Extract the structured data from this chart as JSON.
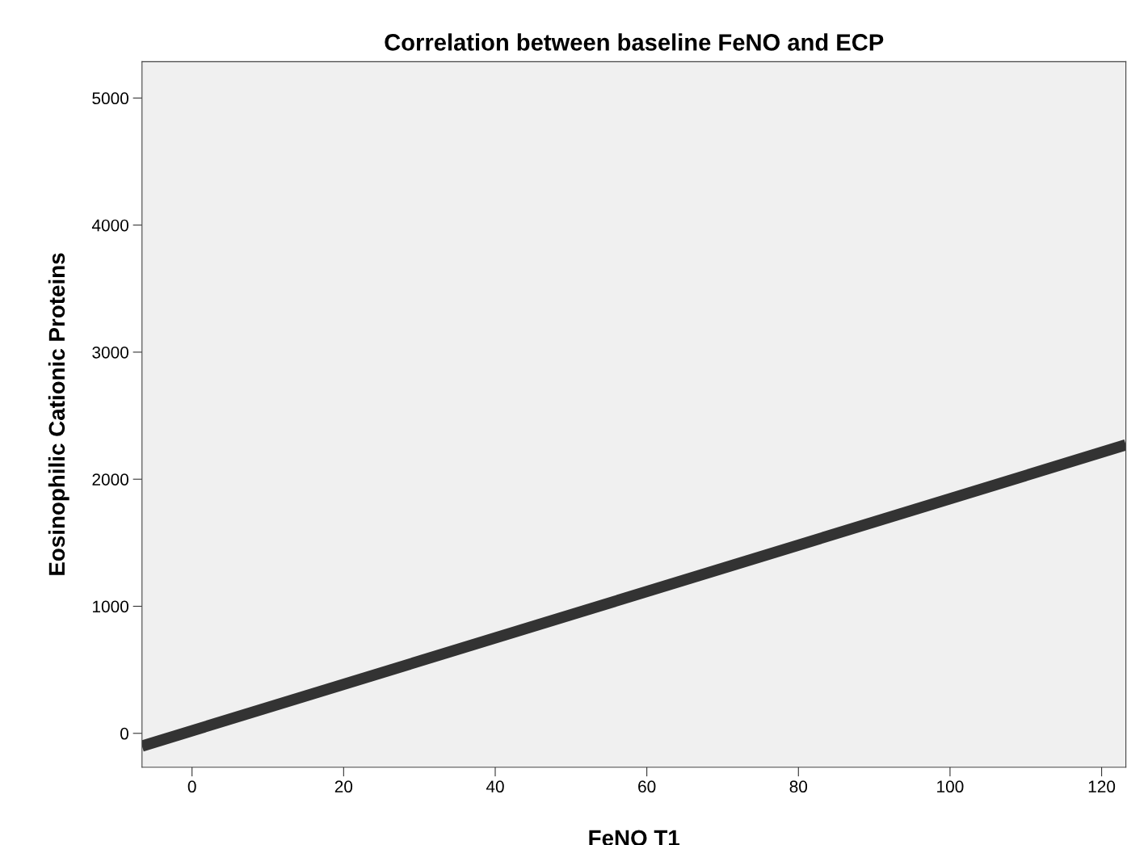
{
  "chart_data": {
    "type": "line",
    "title": "Correlation between baseline FeNO and ECP",
    "xlabel": "FeNO T1",
    "ylabel": "Eosinophilic Cationic Proteins",
    "series": [
      {
        "color": "#333333",
        "x": [
          -6.6,
          123.2
        ],
        "values": [
          -100,
          2270
        ]
      }
    ],
    "xlim": [
      -6.6,
      123.2
    ],
    "xticks": [
      0,
      20,
      40,
      60,
      80,
      100,
      120
    ],
    "ylim": [
      -267,
      5286
    ],
    "yticks": [
      0,
      1000,
      2000,
      3000,
      4000,
      5000
    ],
    "grid": false,
    "legend": false,
    "marker": "none",
    "line_style": "solid"
  }
}
